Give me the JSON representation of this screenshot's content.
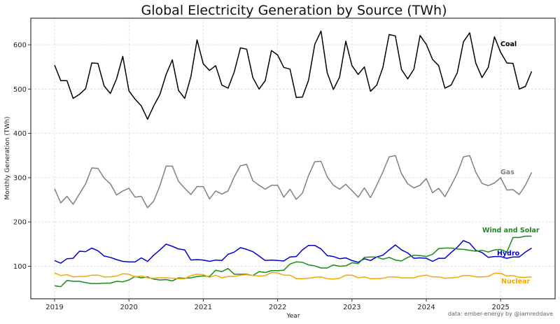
{
  "chart_data": {
    "type": "line",
    "title": "Global Electricity Generation by Source (TWh)",
    "xlabel": "Year",
    "ylabel": "Monthly Generation (TWh)",
    "credit": "data: ember-energy by @iamreddave",
    "x_start": "2019-01",
    "x_end": "2025-06",
    "x_ticks": [
      "2019",
      "2020",
      "2021",
      "2022",
      "2023",
      "2024",
      "2025"
    ],
    "y_ticks": [
      "100",
      "200",
      "300",
      "400",
      "500",
      "600"
    ],
    "ylim": [
      25,
      655
    ],
    "grid": true,
    "legend": "inline labels at line ends",
    "series": [
      {
        "name": "Coal",
        "color": "#000000",
        "values": [
          554,
          519,
          519,
          479,
          488,
          501,
          559,
          558,
          507,
          490,
          523,
          574,
          496,
          477,
          462,
          432,
          462,
          488,
          533,
          566,
          497,
          479,
          528,
          611,
          557,
          542,
          553,
          509,
          502,
          539,
          593,
          590,
          526,
          500,
          519,
          587,
          577,
          549,
          545,
          481,
          482,
          520,
          601,
          631,
          537,
          499,
          527,
          608,
          553,
          533,
          550,
          495,
          509,
          549,
          623,
          620,
          544,
          523,
          545,
          621,
          601,
          567,
          553,
          502,
          509,
          537,
          607,
          627,
          558,
          526,
          549,
          618,
          583,
          559,
          558,
          500,
          506,
          540
        ]
      },
      {
        "name": "Gas",
        "color": "#808080",
        "values": [
          275,
          243,
          258,
          240,
          263,
          286,
          322,
          321,
          299,
          286,
          261,
          270,
          276,
          256,
          258,
          232,
          247,
          282,
          326,
          326,
          292,
          276,
          262,
          280,
          280,
          252,
          270,
          263,
          270,
          302,
          327,
          330,
          293,
          283,
          274,
          283,
          283,
          256,
          274,
          251,
          265,
          305,
          336,
          337,
          302,
          283,
          274,
          285,
          271,
          256,
          277,
          255,
          283,
          313,
          347,
          350,
          309,
          286,
          277,
          283,
          298,
          266,
          276,
          257,
          282,
          310,
          347,
          350,
          312,
          287,
          282,
          288,
          300,
          272,
          273,
          262,
          283,
          312
        ]
      },
      {
        "name": "Hydro",
        "color": "#0000cc",
        "values": [
          113,
          107,
          117,
          118,
          134,
          133,
          141,
          135,
          123,
          120,
          115,
          111,
          110,
          110,
          119,
          111,
          125,
          137,
          150,
          145,
          139,
          137,
          114,
          115,
          114,
          111,
          114,
          113,
          127,
          132,
          142,
          138,
          133,
          123,
          113,
          114,
          113,
          112,
          121,
          122,
          137,
          147,
          147,
          139,
          124,
          122,
          117,
          119,
          113,
          109,
          117,
          113,
          121,
          125,
          137,
          148,
          137,
          130,
          118,
          119,
          118,
          111,
          118,
          118,
          131,
          143,
          158,
          152,
          136,
          131,
          120,
          122,
          122,
          118,
          121,
          121,
          132,
          141
        ]
      },
      {
        "name": "Wind and Solar",
        "color": "#1a8a1a",
        "values": [
          56,
          54,
          68,
          66,
          66,
          63,
          61,
          61,
          62,
          62,
          66,
          65,
          69,
          77,
          74,
          76,
          71,
          69,
          70,
          67,
          74,
          73,
          74,
          77,
          78,
          77,
          91,
          88,
          95,
          82,
          82,
          82,
          79,
          88,
          86,
          90,
          90,
          91,
          105,
          110,
          109,
          103,
          101,
          96,
          96,
          103,
          100,
          101,
          108,
          106,
          120,
          121,
          121,
          116,
          120,
          114,
          112,
          120,
          125,
          124,
          122,
          127,
          140,
          141,
          141,
          139,
          138,
          136,
          134,
          136,
          132,
          137,
          138,
          132,
          165,
          165,
          168,
          168
        ]
      },
      {
        "name": "Nuclear",
        "color": "#f5a800",
        "values": [
          85,
          79,
          81,
          76,
          77,
          77,
          80,
          80,
          76,
          76,
          78,
          83,
          82,
          76,
          78,
          74,
          73,
          74,
          74,
          73,
          72,
          72,
          79,
          82,
          81,
          75,
          80,
          74,
          77,
          77,
          80,
          81,
          79,
          78,
          79,
          86,
          85,
          80,
          80,
          72,
          72,
          73,
          75,
          76,
          72,
          71,
          73,
          80,
          80,
          74,
          76,
          72,
          72,
          73,
          76,
          76,
          74,
          74,
          74,
          78,
          80,
          76,
          76,
          73,
          74,
          75,
          79,
          79,
          76,
          76,
          77,
          84,
          84,
          78,
          79,
          75,
          75,
          76
        ]
      }
    ]
  }
}
